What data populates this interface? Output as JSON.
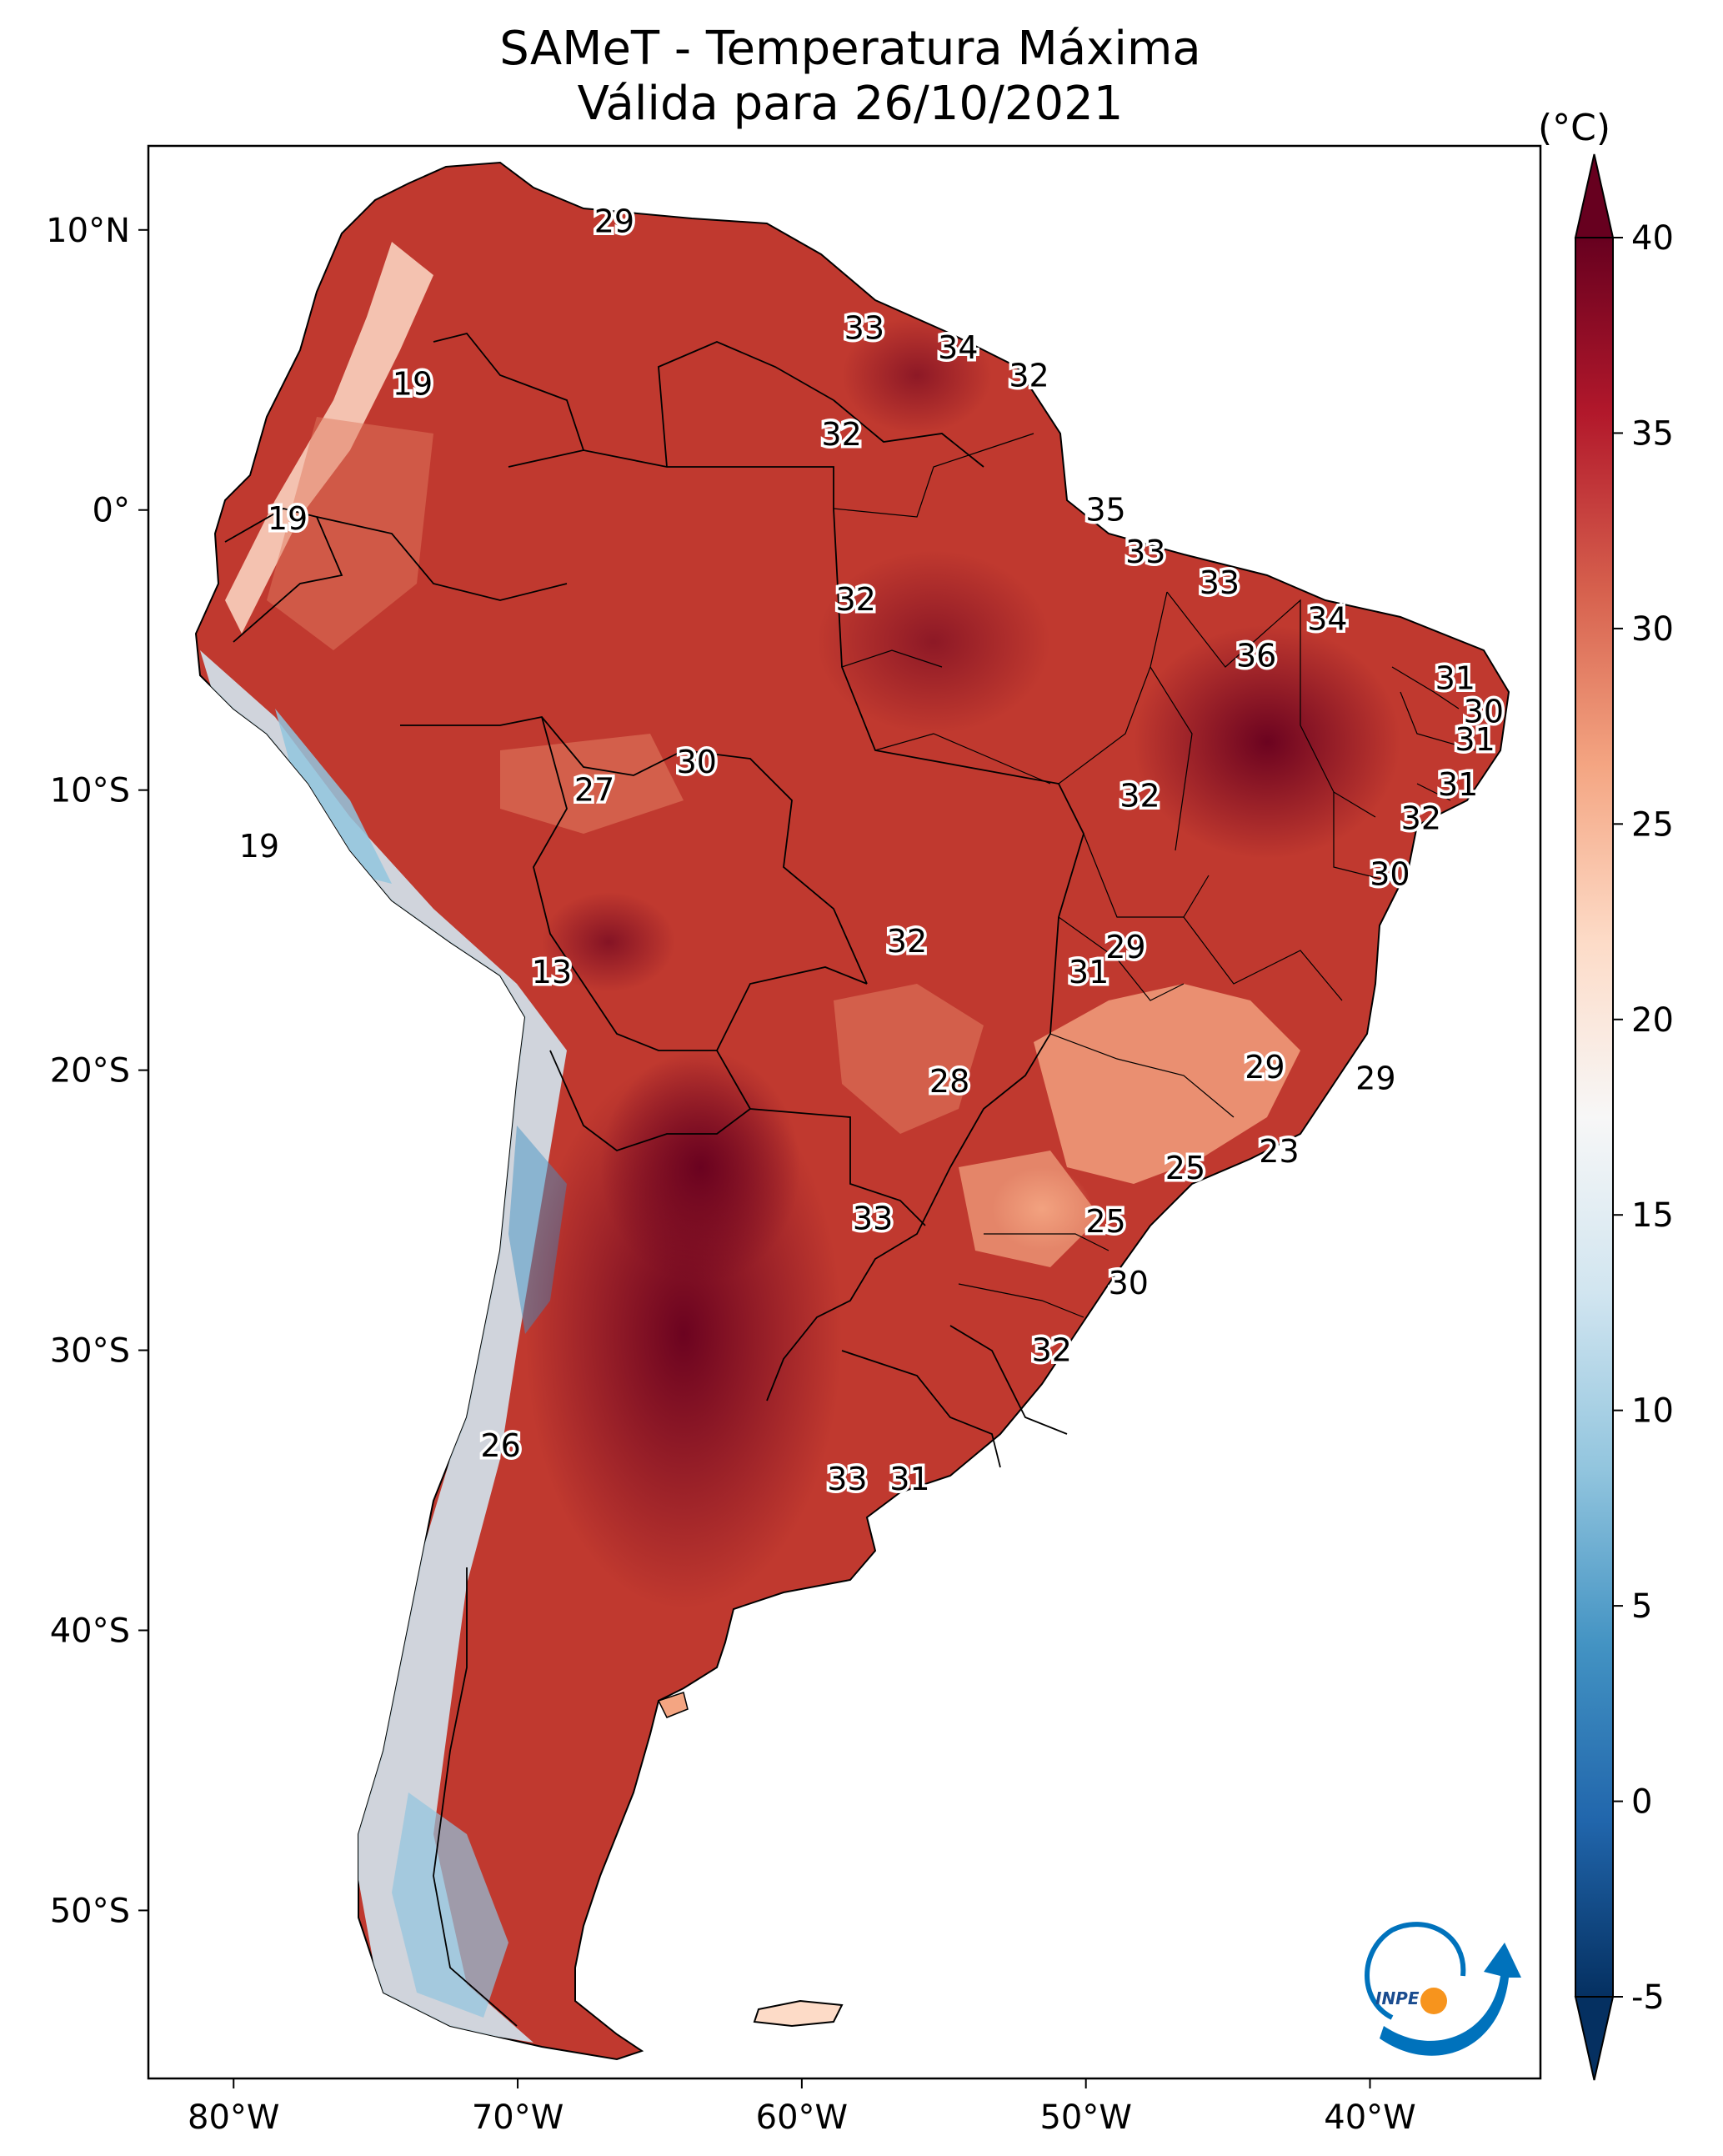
{
  "title": {
    "line1": "SAMeT - Temperatura Máxima",
    "line2": "Válida para 26/10/2021"
  },
  "map": {
    "lon_range": [
      -83,
      -34
    ],
    "lat_range": [
      -56,
      13
    ]
  },
  "axes": {
    "lat_ticks": [
      {
        "value": 10,
        "label": "10°N"
      },
      {
        "value": 0,
        "label": "0°"
      },
      {
        "value": -10,
        "label": "10°S"
      },
      {
        "value": -20,
        "label": "20°S"
      },
      {
        "value": -30,
        "label": "30°S"
      },
      {
        "value": -40,
        "label": "40°S"
      },
      {
        "value": -50,
        "label": "50°S"
      }
    ],
    "lon_ticks": [
      {
        "value": -80,
        "label": "80°W"
      },
      {
        "value": -70,
        "label": "70°W"
      },
      {
        "value": -60,
        "label": "60°W"
      },
      {
        "value": -50,
        "label": "50°W"
      },
      {
        "value": -40,
        "label": "40°W"
      }
    ]
  },
  "colorbar": {
    "unit": "(°C)",
    "min": -5,
    "max": 40,
    "ticks": [
      -5,
      0,
      5,
      10,
      15,
      20,
      25,
      30,
      35,
      40
    ],
    "colors": [
      "#053061",
      "#2166ac",
      "#4393c3",
      "#92c5de",
      "#d1e5f0",
      "#f7f7f7",
      "#fddbc7",
      "#f4a582",
      "#d6604d",
      "#b2182b",
      "#67001f"
    ]
  },
  "chart_data": {
    "type": "map",
    "title": "SAMeT - Temperatura Máxima Válida para 26/10/2021",
    "colorbar_unit": "(°C)",
    "colorbar_range": [
      -5,
      40
    ],
    "station_labels": [
      {
        "lon": -66.6,
        "lat": 10.3,
        "value": "29"
      },
      {
        "lon": -57.8,
        "lat": 6.5,
        "value": "33"
      },
      {
        "lon": -54.5,
        "lat": 5.8,
        "value": "34"
      },
      {
        "lon": -52.0,
        "lat": 4.8,
        "value": "32"
      },
      {
        "lon": -73.7,
        "lat": 4.5,
        "value": "19"
      },
      {
        "lon": -58.6,
        "lat": 2.7,
        "value": "32"
      },
      {
        "lon": -49.3,
        "lat": 0.0,
        "value": "35"
      },
      {
        "lon": -47.9,
        "lat": -1.5,
        "value": "33"
      },
      {
        "lon": -45.3,
        "lat": -2.6,
        "value": "33"
      },
      {
        "lon": -41.5,
        "lat": -3.9,
        "value": "34"
      },
      {
        "lon": -78.1,
        "lat": -0.3,
        "value": "19"
      },
      {
        "lon": -58.1,
        "lat": -3.2,
        "value": "32"
      },
      {
        "lon": -44.0,
        "lat": -5.2,
        "value": "36"
      },
      {
        "lon": -37.0,
        "lat": -6.0,
        "value": "31"
      },
      {
        "lon": -36.0,
        "lat": -7.2,
        "value": "30"
      },
      {
        "lon": -36.3,
        "lat": -8.2,
        "value": "31"
      },
      {
        "lon": -63.7,
        "lat": -9.0,
        "value": "30"
      },
      {
        "lon": -67.3,
        "lat": -10.0,
        "value": "27"
      },
      {
        "lon": -48.1,
        "lat": -10.2,
        "value": "32"
      },
      {
        "lon": -36.9,
        "lat": -9.8,
        "value": "31"
      },
      {
        "lon": -38.2,
        "lat": -11.0,
        "value": "32"
      },
      {
        "lon": -79.1,
        "lat": -12.0,
        "value": "19"
      },
      {
        "lon": -39.3,
        "lat": -13.0,
        "value": "30"
      },
      {
        "lon": -56.3,
        "lat": -15.4,
        "value": "32"
      },
      {
        "lon": -48.6,
        "lat": -15.6,
        "value": "29"
      },
      {
        "lon": -49.9,
        "lat": -16.5,
        "value": "31"
      },
      {
        "lon": -68.8,
        "lat": -16.5,
        "value": "13"
      },
      {
        "lon": -43.7,
        "lat": -19.9,
        "value": "29"
      },
      {
        "lon": -39.8,
        "lat": -20.3,
        "value": "29"
      },
      {
        "lon": -54.8,
        "lat": -20.4,
        "value": "28"
      },
      {
        "lon": -43.2,
        "lat": -22.9,
        "value": "23"
      },
      {
        "lon": -46.5,
        "lat": -23.5,
        "value": "25"
      },
      {
        "lon": -49.3,
        "lat": -25.4,
        "value": "25"
      },
      {
        "lon": -57.5,
        "lat": -25.3,
        "value": "33"
      },
      {
        "lon": -48.5,
        "lat": -27.6,
        "value": "30"
      },
      {
        "lon": -51.2,
        "lat": -30.0,
        "value": "32"
      },
      {
        "lon": -70.6,
        "lat": -33.4,
        "value": "26"
      },
      {
        "lon": -58.4,
        "lat": -34.6,
        "value": "33"
      },
      {
        "lon": -56.2,
        "lat": -34.6,
        "value": "31"
      }
    ]
  },
  "logo": {
    "text": "INPE"
  }
}
